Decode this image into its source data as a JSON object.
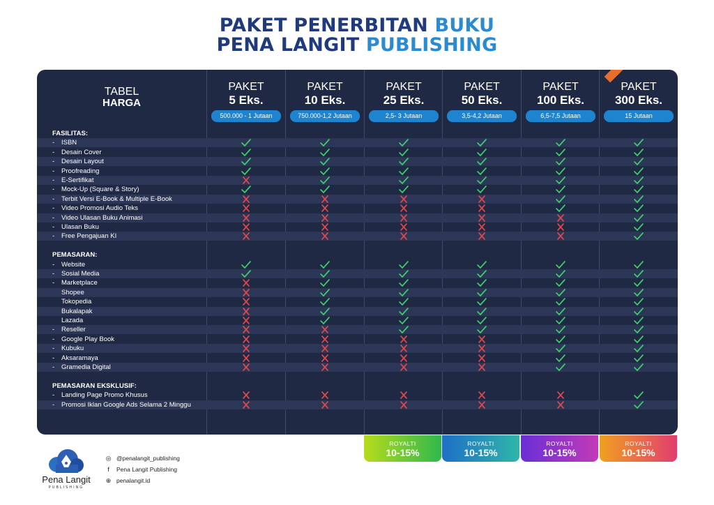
{
  "title": {
    "line1_a": "PAKET PENERBITAN ",
    "line1_b": "BUKU",
    "line2_a": "PENA LANGIT ",
    "line2_b": "PUBLISHING"
  },
  "table_header": {
    "line1": "TABEL",
    "line2": "HARGA"
  },
  "packages": [
    {
      "label": "PAKET",
      "qty": "5 Eks.",
      "price": "500.000 - 1 Jutaan"
    },
    {
      "label": "PAKET",
      "qty": "10 Eks.",
      "price": "750.000-1,2 Jutaan"
    },
    {
      "label": "PAKET",
      "qty": "25 Eks.",
      "price": "2,5- 3 Jutaan"
    },
    {
      "label": "PAKET",
      "qty": "50 Eks.",
      "price": "3,5-4,2 Jutaan"
    },
    {
      "label": "PAKET",
      "qty": "100 Eks.",
      "price": "6,5-7,5 Jutaan"
    },
    {
      "label": "PAKET",
      "qty": "300 Eks.",
      "price": "15 Jutaan"
    }
  ],
  "colors": {
    "check": "#3fcf6a",
    "cross": "#e0474c",
    "navy": "#202944",
    "band": "#2c3757"
  },
  "rows": [
    {
      "type": "section",
      "label": "FASILITAS:"
    },
    {
      "type": "item",
      "dash": "-",
      "label": "ISBN",
      "marks": [
        1,
        1,
        1,
        1,
        1,
        1
      ]
    },
    {
      "type": "item",
      "dash": "-",
      "label": "Desain Cover",
      "marks": [
        1,
        1,
        1,
        1,
        1,
        1
      ]
    },
    {
      "type": "item",
      "dash": "-",
      "label": "Desain Layout",
      "marks": [
        1,
        1,
        1,
        1,
        1,
        1
      ]
    },
    {
      "type": "item",
      "dash": "-",
      "label": "Proofreading",
      "marks": [
        1,
        1,
        1,
        1,
        1,
        1
      ]
    },
    {
      "type": "item",
      "dash": "-",
      "label": "E-Sertifikat",
      "marks": [
        0,
        1,
        1,
        1,
        1,
        1
      ]
    },
    {
      "type": "item",
      "dash": "-",
      "label": "Mock-Up (Square & Story)",
      "marks": [
        1,
        1,
        1,
        1,
        1,
        1
      ]
    },
    {
      "type": "item",
      "dash": "-",
      "label": "Terbit Versi E-Book & Multiple E-Book",
      "marks": [
        0,
        0,
        0,
        0,
        1,
        1
      ]
    },
    {
      "type": "item",
      "dash": "-",
      "label": "Video Promosi Audio Teks",
      "marks": [
        0,
        0,
        0,
        0,
        1,
        1
      ]
    },
    {
      "type": "item",
      "dash": "-",
      "label": "Video Ulasan Buku Animasi",
      "marks": [
        0,
        0,
        0,
        0,
        0,
        1
      ]
    },
    {
      "type": "item",
      "dash": "-",
      "label": "Ulasan Buku",
      "marks": [
        0,
        0,
        0,
        0,
        0,
        1
      ]
    },
    {
      "type": "item",
      "dash": "-",
      "label": "Free Pengajuan KI",
      "marks": [
        0,
        0,
        0,
        0,
        0,
        1
      ]
    },
    {
      "type": "blank"
    },
    {
      "type": "section",
      "label": "PEMASARAN:"
    },
    {
      "type": "item",
      "dash": "-",
      "label": "Website",
      "marks": [
        1,
        1,
        1,
        1,
        1,
        1
      ]
    },
    {
      "type": "item",
      "dash": "-",
      "label": "Sosial Media",
      "marks": [
        1,
        1,
        1,
        1,
        1,
        1
      ]
    },
    {
      "type": "item",
      "dash": "-",
      "label": "Marketplace",
      "marks": [
        0,
        1,
        1,
        1,
        1,
        1
      ]
    },
    {
      "type": "item",
      "dash": "",
      "label": "Shopee",
      "marks": [
        0,
        1,
        1,
        1,
        1,
        1
      ]
    },
    {
      "type": "item",
      "dash": "",
      "label": "Tokopedia",
      "marks": [
        0,
        1,
        1,
        1,
        1,
        1
      ]
    },
    {
      "type": "item",
      "dash": "",
      "label": "Bukalapak",
      "marks": [
        0,
        1,
        1,
        1,
        1,
        1
      ]
    },
    {
      "type": "item",
      "dash": "",
      "label": "Lazada",
      "marks": [
        0,
        1,
        1,
        1,
        1,
        1
      ]
    },
    {
      "type": "item",
      "dash": "-",
      "label": "Reseller",
      "marks": [
        0,
        0,
        1,
        1,
        1,
        1
      ]
    },
    {
      "type": "item",
      "dash": "-",
      "label": "Google Play Book",
      "marks": [
        0,
        0,
        0,
        0,
        1,
        1
      ]
    },
    {
      "type": "item",
      "dash": "-",
      "label": "Kubuku",
      "marks": [
        0,
        0,
        0,
        0,
        1,
        1
      ]
    },
    {
      "type": "item",
      "dash": "-",
      "label": "Aksaramaya",
      "marks": [
        0,
        0,
        0,
        0,
        1,
        1
      ]
    },
    {
      "type": "item",
      "dash": "-",
      "label": "Gramedia Digital",
      "marks": [
        0,
        0,
        0,
        0,
        1,
        1
      ]
    },
    {
      "type": "blank"
    },
    {
      "type": "section",
      "label": "PEMASARAN EKSKLUSIF:"
    },
    {
      "type": "item",
      "dash": "-",
      "label": "Landing Page Promo Khusus",
      "marks": [
        0,
        0,
        0,
        0,
        0,
        1
      ]
    },
    {
      "type": "item",
      "dash": "-",
      "label": "Promosi Iklan Google Ads Selama 2 Minggu",
      "marks": [
        0,
        0,
        0,
        0,
        0,
        1
      ]
    }
  ],
  "royalty": [
    {
      "label": "ROYALTI",
      "value": "10-15%"
    },
    {
      "label": "ROYALTI",
      "value": "10-15%"
    },
    {
      "label": "ROYALTI",
      "value": "10-15%"
    },
    {
      "label": "ROYALTI",
      "value": "10-15%"
    }
  ],
  "logo": {
    "name": "Pena Langit",
    "sub": "PUBLISHING"
  },
  "social": {
    "instagram": "@penalangit_publishing",
    "facebook": "Pena Langit Publishing",
    "website": "penalangit.id"
  }
}
